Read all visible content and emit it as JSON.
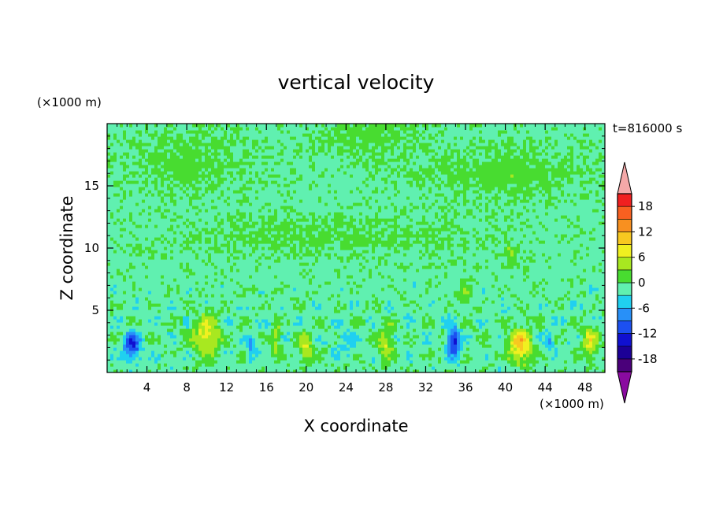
{
  "chart_data": {
    "type": "heatmap",
    "title": "vertical velocity",
    "xlabel": "X coordinate",
    "ylabel": "Z coordinate",
    "x_unit": "(×1000 m)",
    "y_unit": "(×1000 m)",
    "time_label": "t=816000 s",
    "xlim": [
      0,
      50
    ],
    "ylim": [
      0,
      20
    ],
    "xticks": [
      4,
      8,
      12,
      16,
      20,
      24,
      28,
      32,
      36,
      40,
      44,
      48
    ],
    "yticks": [
      5,
      10,
      15
    ],
    "colorbar": {
      "levels": [
        -21,
        -18,
        -15,
        -12,
        -9,
        -6,
        -3,
        0,
        3,
        6,
        9,
        12,
        15,
        18,
        21
      ],
      "colors": [
        "#4a007a",
        "#1c0096",
        "#1010d0",
        "#1c50f0",
        "#2890f8",
        "#20d0f0",
        "#60f0b0",
        "#48dc30",
        "#a8e820",
        "#f0f020",
        "#f8c820",
        "#f89020",
        "#f86020",
        "#f02020"
      ],
      "under_color": "#8a0aa0",
      "over_color": "#f4a8a8",
      "tick_labels": [
        "18",
        "12",
        "6",
        "0",
        "-6",
        "-12",
        "-18"
      ]
    },
    "features": [
      {
        "x": 2.5,
        "z": 2.2,
        "value": -12,
        "sx": 0.8,
        "sz": 1.0
      },
      {
        "x": 10.0,
        "z": 3.0,
        "value": 9,
        "sx": 1.3,
        "sz": 1.6
      },
      {
        "x": 14.5,
        "z": 2.0,
        "value": -6,
        "sx": 0.4,
        "sz": 0.8
      },
      {
        "x": 17.0,
        "z": 2.5,
        "value": 5,
        "sx": 0.5,
        "sz": 1.4
      },
      {
        "x": 20.0,
        "z": 2.0,
        "value": 8,
        "sx": 0.7,
        "sz": 1.2
      },
      {
        "x": 24.0,
        "z": 2.5,
        "value": -3,
        "sx": 1.0,
        "sz": 1.0
      },
      {
        "x": 28.0,
        "z": 2.3,
        "value": 7,
        "sx": 0.7,
        "sz": 1.3
      },
      {
        "x": 34.8,
        "z": 2.5,
        "value": -12,
        "sx": 0.6,
        "sz": 1.2
      },
      {
        "x": 36.0,
        "z": 6.5,
        "value": 4,
        "sx": 0.6,
        "sz": 1.0
      },
      {
        "x": 41.5,
        "z": 2.2,
        "value": 11,
        "sx": 1.2,
        "sz": 1.4
      },
      {
        "x": 44.5,
        "z": 2.5,
        "value": -6,
        "sx": 0.4,
        "sz": 0.7
      },
      {
        "x": 48.5,
        "z": 2.5,
        "value": 8,
        "sx": 0.8,
        "sz": 1.3
      },
      {
        "x": 40.5,
        "z": 9.5,
        "value": 4,
        "sx": 0.6,
        "sz": 0.8
      }
    ],
    "grid": false
  }
}
